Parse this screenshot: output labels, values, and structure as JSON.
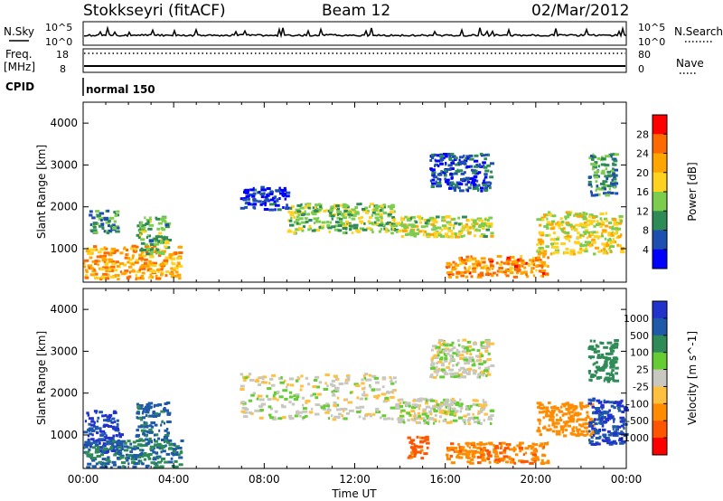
{
  "header": {
    "station": "Stokkseyri (fitACF)",
    "beam": "Beam 12",
    "date": "02/Mar/2012"
  },
  "top_panels": {
    "nsky_label": "N.Sky",
    "nsearch_label": "N.Search",
    "nsky_ticks": [
      "10^5",
      "10^0"
    ],
    "nsearch_ticks": [
      "10^5",
      "10^0"
    ],
    "freq_label": "Freq.",
    "freq_unit": "[MHz]",
    "freq_ticks": [
      "18",
      "8"
    ],
    "nave_label": "Nave",
    "nave_ticks": [
      "80",
      "0"
    ],
    "cpid_label": "CPID",
    "cpid_value": "normal 150"
  },
  "colors": {
    "power_scale": [
      "#0000ff",
      "#1e4fb0",
      "#2e8b57",
      "#7ccd4e",
      "#ffd21f",
      "#ffa500",
      "#ff6a00",
      "#ff0000"
    ],
    "velocity_scale": [
      "#2233cc",
      "#1e5aa8",
      "#2e8b57",
      "#66cc33",
      "#c8c8c0",
      "#ffc040",
      "#ff8c00",
      "#ff5500",
      "#ff0000"
    ]
  },
  "chart_data": [
    {
      "type": "heatmap",
      "panel": "power",
      "ylabel": "Slant Range [km]",
      "xlabel": "",
      "colorbar_label": "Power [dB]",
      "colorbar_ticks": [
        "28",
        "24",
        "20",
        "16",
        "12",
        "8",
        "4"
      ],
      "x_ticks": [
        "00:00",
        "04:00",
        "08:00",
        "12:00",
        "16:00",
        "20:00",
        "00:00"
      ],
      "y_ticks": [
        "4000",
        "3000",
        "2000",
        "1000"
      ],
      "ylim": [
        200,
        4500
      ],
      "xlim": [
        0,
        24
      ],
      "regions": [
        {
          "t0": 0.0,
          "t1": 4.3,
          "r0": 300,
          "r1": 1100,
          "value": 24
        },
        {
          "t0": 0.2,
          "t1": 1.5,
          "r0": 1400,
          "r1": 1950,
          "value": 12
        },
        {
          "t0": 2.3,
          "t1": 3.7,
          "r0": 900,
          "r1": 1800,
          "value": 14
        },
        {
          "t0": 6.9,
          "t1": 9.0,
          "r0": 1950,
          "r1": 2500,
          "value": 6
        },
        {
          "t0": 9.0,
          "t1": 13.8,
          "r0": 1400,
          "r1": 2100,
          "value": 16
        },
        {
          "t0": 13.8,
          "t1": 18.0,
          "r0": 1300,
          "r1": 1800,
          "value": 18
        },
        {
          "t0": 16.0,
          "t1": 20.5,
          "r0": 350,
          "r1": 850,
          "value": 26
        },
        {
          "t0": 20.0,
          "t1": 23.8,
          "r0": 900,
          "r1": 1900,
          "value": 20
        },
        {
          "t0": 22.3,
          "t1": 23.5,
          "r0": 2300,
          "r1": 3300,
          "value": 12
        },
        {
          "t0": 15.3,
          "t1": 18.0,
          "r0": 2400,
          "r1": 3300,
          "value": 8
        }
      ]
    },
    {
      "type": "heatmap",
      "panel": "velocity",
      "ylabel": "Slant Range [km]",
      "xlabel": "Time UT",
      "colorbar_label": "Velocity [m s^-1]",
      "colorbar_ticks": [
        "1000",
        "500",
        "100",
        "25",
        "-25",
        "-100",
        "-500",
        "-1000"
      ],
      "x_ticks": [
        "00:00",
        "04:00",
        "08:00",
        "12:00",
        "16:00",
        "20:00",
        "00:00"
      ],
      "y_ticks": [
        "4000",
        "3000",
        "2000",
        "1000"
      ],
      "ylim": [
        200,
        4500
      ],
      "xlim": [
        0,
        24
      ],
      "regions": [
        {
          "t0": 0.0,
          "t1": 1.6,
          "r0": 600,
          "r1": 1600,
          "value": 800
        },
        {
          "t0": 0.0,
          "t1": 4.3,
          "r0": 250,
          "r1": 900,
          "value": 300
        },
        {
          "t0": 2.3,
          "t1": 3.7,
          "r0": 900,
          "r1": 1800,
          "value": 400
        },
        {
          "t0": 6.9,
          "t1": 13.8,
          "r0": 1400,
          "r1": 2500,
          "value": 0
        },
        {
          "t0": 13.8,
          "t1": 18.0,
          "r0": 1300,
          "r1": 1900,
          "value": 0
        },
        {
          "t0": 14.3,
          "t1": 15.2,
          "r0": 450,
          "r1": 1000,
          "value": -400
        },
        {
          "t0": 16.0,
          "t1": 20.5,
          "r0": 350,
          "r1": 850,
          "value": -250
        },
        {
          "t0": 20.0,
          "t1": 22.5,
          "r0": 1000,
          "r1": 1800,
          "value": -200
        },
        {
          "t0": 22.3,
          "t1": 23.9,
          "r0": 800,
          "r1": 1900,
          "value": 700
        },
        {
          "t0": 22.3,
          "t1": 23.5,
          "r0": 2300,
          "r1": 3300,
          "value": 200
        },
        {
          "t0": 15.3,
          "t1": 18.0,
          "r0": 2400,
          "r1": 3300,
          "value": 0
        }
      ]
    }
  ]
}
